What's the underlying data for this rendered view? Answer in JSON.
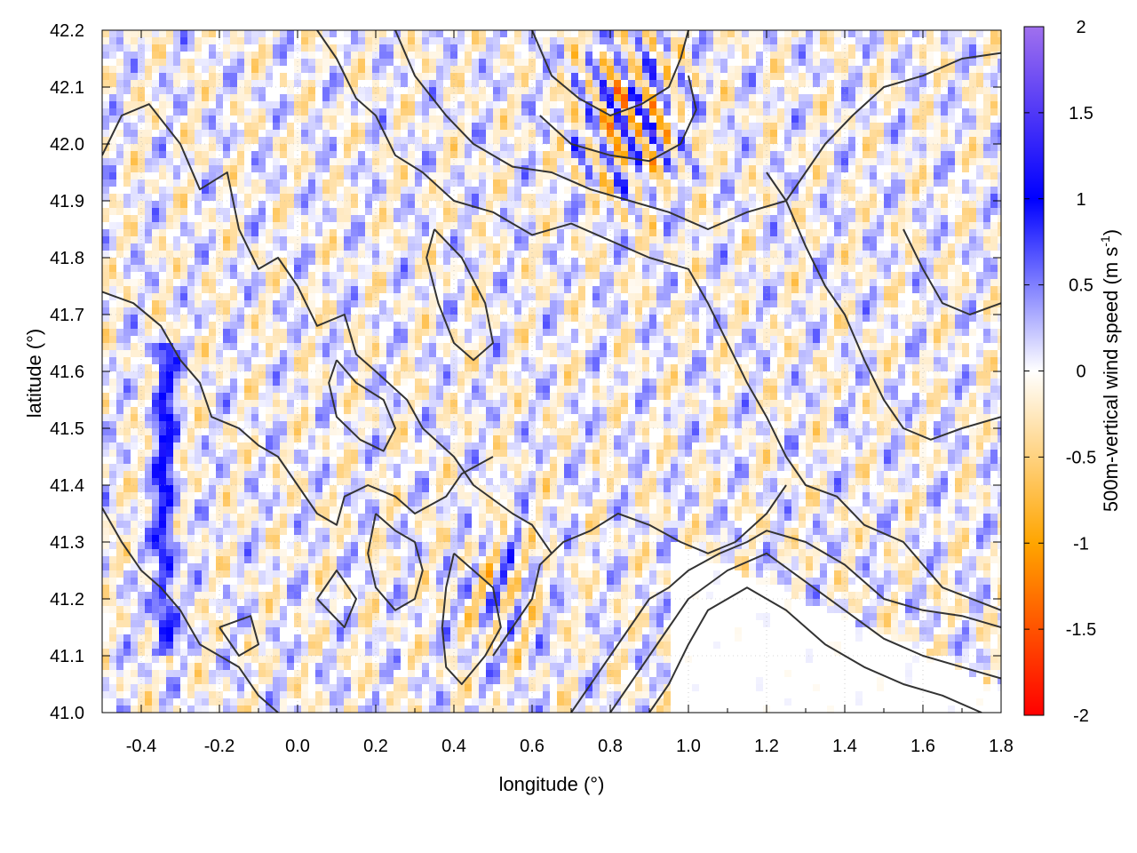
{
  "chart_data": {
    "type": "heatmap",
    "title": "",
    "xlabel": "longitude (°)",
    "ylabel": "latitude (°)",
    "colorbar_label_main": "500m-vertical wind speed (m s",
    "colorbar_label_sup": "-1",
    "colorbar_label_close": ")",
    "xlim": [
      -0.5,
      1.8
    ],
    "ylim": [
      41.0,
      42.2
    ],
    "x_ticks": [
      -0.4,
      -0.2,
      0.0,
      0.2,
      0.4,
      0.6,
      0.8,
      1.0,
      1.2,
      1.4,
      1.6,
      1.8
    ],
    "x_tick_labels": [
      "-0.4",
      "-0.2",
      "0.0",
      "0.2",
      "0.4",
      "0.6",
      "0.8",
      "1.0",
      "1.2",
      "1.4",
      "1.6",
      "1.8"
    ],
    "y_ticks": [
      41.0,
      41.1,
      41.2,
      41.3,
      41.4,
      41.5,
      41.6,
      41.7,
      41.8,
      41.9,
      42.0,
      42.1,
      42.2
    ],
    "y_tick_labels": [
      "41.0",
      "41.1",
      "41.2",
      "41.3",
      "41.4",
      "41.5",
      "41.6",
      "41.7",
      "41.8",
      "41.9",
      "42.0",
      "42.1",
      "42.2"
    ],
    "colorbar_range": [
      -2,
      2
    ],
    "colorbar_ticks": [
      2,
      1.5,
      1,
      0.5,
      0,
      -0.5,
      -1,
      -1.5,
      -2
    ],
    "colorbar_tick_labels": [
      "2",
      "1.5",
      "1",
      "0.5",
      "0",
      "-0.5",
      "-1",
      "-1.5",
      "-2"
    ],
    "colormap": [
      {
        "value": -2.0,
        "color": "#ff0000"
      },
      {
        "value": -1.0,
        "color": "#ffa500"
      },
      {
        "value": 0.0,
        "color": "#ffffff"
      },
      {
        "value": 1.0,
        "color": "#0000ff"
      },
      {
        "value": 2.0,
        "color": "#a070ee"
      }
    ],
    "grid": true,
    "contour_color": "#333333",
    "contours": [
      [
        [
          -0.5,
          41.98
        ],
        [
          -0.45,
          42.05
        ],
        [
          -0.38,
          42.07
        ],
        [
          -0.3,
          42.0
        ],
        [
          -0.25,
          41.92
        ],
        [
          -0.18,
          41.95
        ],
        [
          -0.15,
          41.85
        ],
        [
          -0.1,
          41.78
        ],
        [
          -0.05,
          41.8
        ],
        [
          0.0,
          41.75
        ],
        [
          0.05,
          41.68
        ],
        [
          0.12,
          41.7
        ],
        [
          0.15,
          41.63
        ],
        [
          0.2,
          41.6
        ],
        [
          0.28,
          41.55
        ],
        [
          0.32,
          41.5
        ],
        [
          0.4,
          41.45
        ],
        [
          0.45,
          41.4
        ],
        [
          0.55,
          41.35
        ],
        [
          0.6,
          41.33
        ],
        [
          0.65,
          41.28
        ]
      ],
      [
        [
          -0.5,
          41.74
        ],
        [
          -0.42,
          41.72
        ],
        [
          -0.35,
          41.68
        ],
        [
          -0.3,
          41.62
        ],
        [
          -0.25,
          41.58
        ],
        [
          -0.22,
          41.52
        ],
        [
          -0.15,
          41.5
        ],
        [
          -0.1,
          41.47
        ],
        [
          -0.05,
          41.45
        ],
        [
          0.0,
          41.4
        ],
        [
          0.05,
          41.35
        ],
        [
          0.1,
          41.33
        ],
        [
          0.12,
          41.38
        ],
        [
          0.18,
          41.4
        ],
        [
          0.25,
          41.38
        ],
        [
          0.3,
          41.35
        ],
        [
          0.38,
          41.38
        ],
        [
          0.42,
          41.42
        ],
        [
          0.5,
          41.45
        ]
      ],
      [
        [
          -0.5,
          41.36
        ],
        [
          -0.45,
          41.3
        ],
        [
          -0.4,
          41.25
        ],
        [
          -0.35,
          41.22
        ],
        [
          -0.3,
          41.18
        ],
        [
          -0.25,
          41.12
        ],
        [
          -0.2,
          41.1
        ],
        [
          -0.15,
          41.08
        ],
        [
          -0.1,
          41.03
        ],
        [
          -0.05,
          41.0
        ]
      ],
      [
        [
          0.05,
          42.2
        ],
        [
          0.1,
          42.15
        ],
        [
          0.15,
          42.08
        ],
        [
          0.2,
          42.05
        ],
        [
          0.25,
          41.98
        ],
        [
          0.32,
          41.95
        ],
        [
          0.4,
          41.9
        ],
        [
          0.5,
          41.88
        ],
        [
          0.6,
          41.84
        ],
        [
          0.7,
          41.86
        ],
        [
          0.8,
          41.83
        ],
        [
          0.9,
          41.8
        ],
        [
          1.0,
          41.78
        ],
        [
          1.05,
          41.72
        ],
        [
          1.1,
          41.65
        ],
        [
          1.15,
          41.58
        ],
        [
          1.2,
          41.52
        ],
        [
          1.25,
          41.45
        ],
        [
          1.3,
          41.4
        ],
        [
          1.38,
          41.38
        ],
        [
          1.45,
          41.33
        ],
        [
          1.55,
          41.3
        ],
        [
          1.65,
          41.22
        ],
        [
          1.8,
          41.18
        ]
      ],
      [
        [
          0.25,
          42.2
        ],
        [
          0.3,
          42.12
        ],
        [
          0.38,
          42.05
        ],
        [
          0.45,
          42.0
        ],
        [
          0.55,
          41.96
        ],
        [
          0.65,
          41.95
        ],
        [
          0.75,
          41.92
        ],
        [
          0.85,
          41.9
        ],
        [
          0.95,
          41.88
        ],
        [
          1.05,
          41.85
        ],
        [
          1.15,
          41.88
        ],
        [
          1.25,
          41.9
        ],
        [
          1.3,
          41.95
        ],
        [
          1.35,
          42.0
        ],
        [
          1.42,
          42.05
        ],
        [
          1.5,
          42.1
        ],
        [
          1.6,
          42.12
        ],
        [
          1.7,
          42.15
        ],
        [
          1.8,
          42.16
        ]
      ],
      [
        [
          0.6,
          42.2
        ],
        [
          0.65,
          42.12
        ],
        [
          0.72,
          42.08
        ],
        [
          0.8,
          42.05
        ],
        [
          0.88,
          42.07
        ],
        [
          0.95,
          42.1
        ],
        [
          0.98,
          42.15
        ],
        [
          1.0,
          42.2
        ]
      ],
      [
        [
          0.62,
          42.05
        ],
        [
          0.7,
          42.0
        ],
        [
          0.8,
          41.98
        ],
        [
          0.9,
          41.97
        ],
        [
          0.98,
          42.0
        ],
        [
          1.02,
          42.06
        ],
        [
          1.0,
          42.12
        ]
      ],
      [
        [
          0.5,
          41.1
        ],
        [
          0.55,
          41.15
        ],
        [
          0.6,
          41.2
        ],
        [
          0.62,
          41.26
        ],
        [
          0.68,
          41.3
        ],
        [
          0.75,
          41.32
        ],
        [
          0.82,
          41.35
        ],
        [
          0.9,
          41.33
        ],
        [
          0.98,
          41.3
        ],
        [
          1.05,
          41.28
        ],
        [
          1.12,
          41.3
        ],
        [
          1.2,
          41.35
        ],
        [
          1.25,
          41.4
        ]
      ],
      [
        [
          0.7,
          41.0
        ],
        [
          0.75,
          41.05
        ],
        [
          0.8,
          41.1
        ],
        [
          0.85,
          41.15
        ],
        [
          0.9,
          41.2
        ],
        [
          0.95,
          41.22
        ],
        [
          1.0,
          41.25
        ],
        [
          1.08,
          41.28
        ],
        [
          1.15,
          41.3
        ],
        [
          1.2,
          41.32
        ],
        [
          1.3,
          41.3
        ],
        [
          1.4,
          41.26
        ],
        [
          1.5,
          41.2
        ],
        [
          1.6,
          41.18
        ],
        [
          1.7,
          41.17
        ],
        [
          1.8,
          41.15
        ]
      ],
      [
        [
          0.8,
          41.0
        ],
        [
          0.85,
          41.05
        ],
        [
          0.9,
          41.1
        ],
        [
          0.95,
          41.15
        ],
        [
          1.0,
          41.2
        ],
        [
          1.1,
          41.25
        ],
        [
          1.2,
          41.28
        ],
        [
          1.3,
          41.23
        ],
        [
          1.4,
          41.18
        ],
        [
          1.5,
          41.13
        ],
        [
          1.6,
          41.1
        ],
        [
          1.7,
          41.08
        ],
        [
          1.8,
          41.06
        ]
      ],
      [
        [
          0.9,
          41.0
        ],
        [
          0.95,
          41.05
        ],
        [
          1.0,
          41.12
        ],
        [
          1.05,
          41.18
        ],
        [
          1.15,
          41.22
        ],
        [
          1.25,
          41.18
        ],
        [
          1.35,
          41.12
        ],
        [
          1.45,
          41.08
        ],
        [
          1.55,
          41.05
        ],
        [
          1.65,
          41.03
        ],
        [
          1.75,
          41.0
        ]
      ],
      [
        [
          0.2,
          41.35
        ],
        [
          0.25,
          41.32
        ],
        [
          0.3,
          41.3
        ],
        [
          0.32,
          41.25
        ],
        [
          0.3,
          41.2
        ],
        [
          0.25,
          41.18
        ],
        [
          0.2,
          41.22
        ],
        [
          0.18,
          41.28
        ],
        [
          0.2,
          41.35
        ]
      ],
      [
        [
          0.4,
          41.28
        ],
        [
          0.45,
          41.25
        ],
        [
          0.5,
          41.22
        ],
        [
          0.52,
          41.15
        ],
        [
          0.48,
          41.1
        ],
        [
          0.42,
          41.05
        ],
        [
          0.38,
          41.08
        ],
        [
          0.37,
          41.15
        ],
        [
          0.38,
          41.22
        ],
        [
          0.4,
          41.28
        ]
      ],
      [
        [
          0.1,
          41.62
        ],
        [
          0.15,
          41.58
        ],
        [
          0.22,
          41.55
        ],
        [
          0.25,
          41.5
        ],
        [
          0.22,
          41.46
        ],
        [
          0.16,
          41.48
        ],
        [
          0.1,
          41.52
        ],
        [
          0.08,
          41.58
        ],
        [
          0.1,
          41.62
        ]
      ],
      [
        [
          0.35,
          41.85
        ],
        [
          0.42,
          41.8
        ],
        [
          0.48,
          41.72
        ],
        [
          0.5,
          41.65
        ],
        [
          0.45,
          41.62
        ],
        [
          0.4,
          41.65
        ],
        [
          0.36,
          41.72
        ],
        [
          0.33,
          41.8
        ],
        [
          0.35,
          41.85
        ]
      ],
      [
        [
          1.2,
          41.95
        ],
        [
          1.25,
          41.9
        ],
        [
          1.3,
          41.82
        ],
        [
          1.35,
          41.75
        ],
        [
          1.4,
          41.7
        ],
        [
          1.45,
          41.62
        ],
        [
          1.5,
          41.55
        ],
        [
          1.55,
          41.5
        ],
        [
          1.62,
          41.48
        ],
        [
          1.7,
          41.5
        ],
        [
          1.8,
          41.52
        ]
      ],
      [
        [
          -0.2,
          41.15
        ],
        [
          -0.15,
          41.1
        ],
        [
          -0.1,
          41.12
        ],
        [
          -0.12,
          41.17
        ],
        [
          -0.2,
          41.15
        ]
      ],
      [
        [
          1.55,
          41.85
        ],
        [
          1.6,
          41.78
        ],
        [
          1.65,
          41.72
        ],
        [
          1.72,
          41.7
        ],
        [
          1.8,
          41.72
        ]
      ],
      [
        [
          0.05,
          41.2
        ],
        [
          0.1,
          41.25
        ],
        [
          0.15,
          41.2
        ],
        [
          0.12,
          41.15
        ],
        [
          0.05,
          41.2
        ]
      ]
    ]
  }
}
